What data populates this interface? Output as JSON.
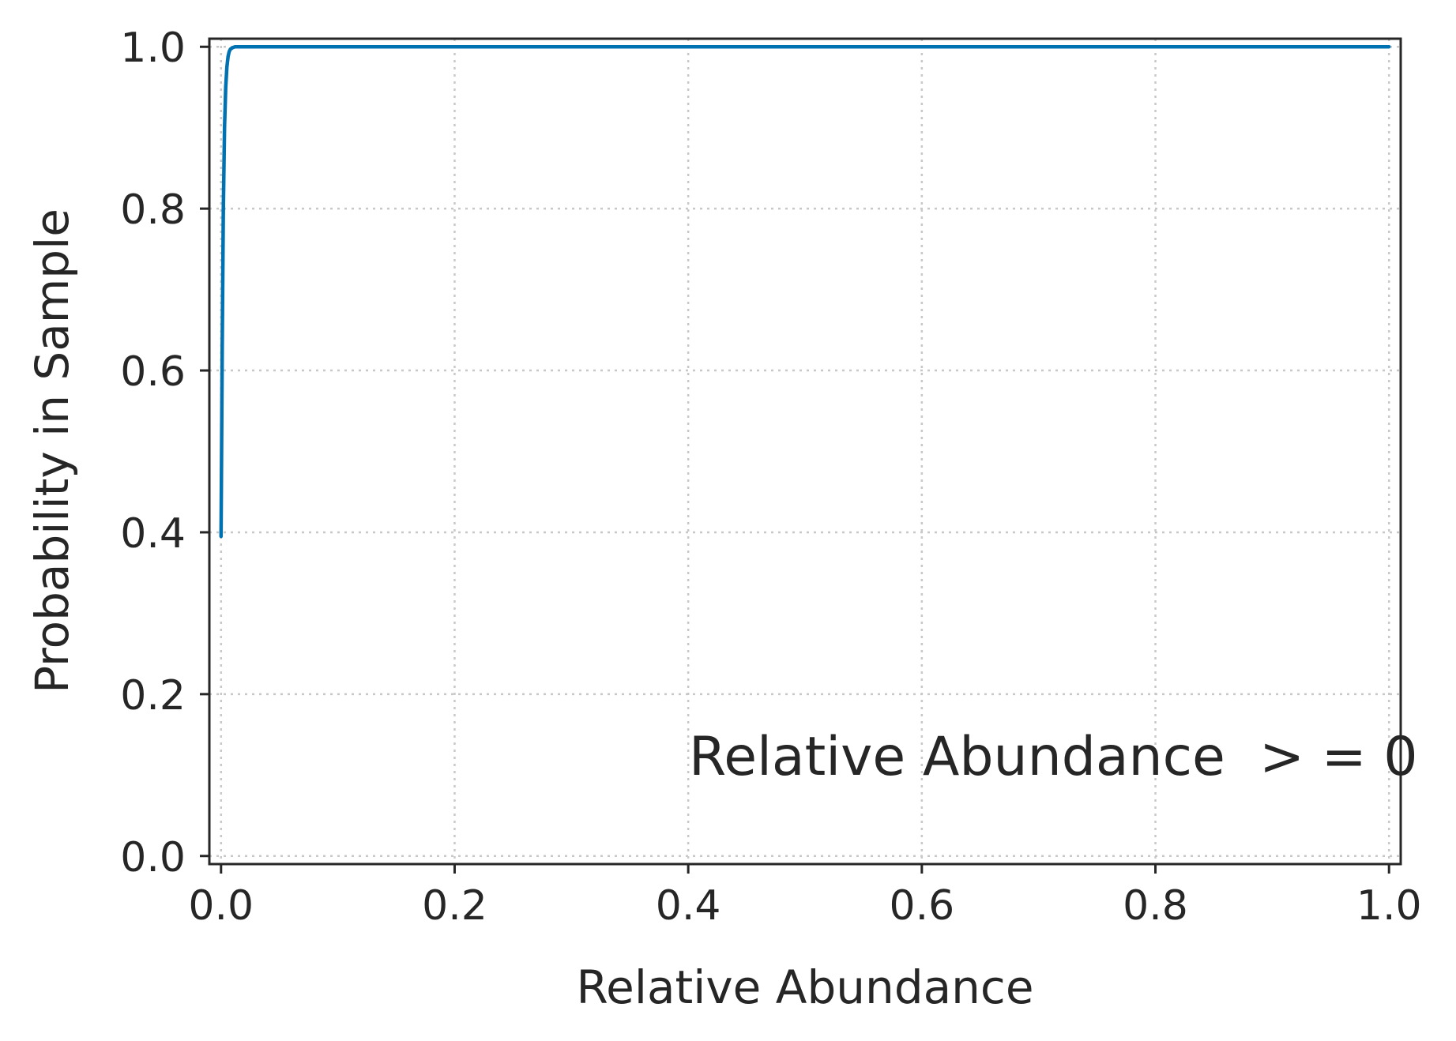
{
  "chart_data": {
    "type": "line",
    "xlabel": "Relative Abundance",
    "ylabel": "Probability in Sample",
    "xlim": [
      -0.01,
      1.01
    ],
    "ylim": [
      -0.01,
      1.01
    ],
    "xticks": [
      0.0,
      0.2,
      0.4,
      0.6,
      0.8,
      1.0
    ],
    "yticks": [
      0.0,
      0.2,
      0.4,
      0.6,
      0.8,
      1.0
    ],
    "xtick_labels": [
      "0.0",
      "0.2",
      "0.4",
      "0.6",
      "0.8",
      "1.0"
    ],
    "ytick_labels": [
      "0.0",
      "0.2",
      "0.4",
      "0.6",
      "0.8",
      "1.0"
    ],
    "grid": true,
    "annotation": "Relative Abundance  > = 0",
    "series": [
      {
        "color": "#0072b2",
        "x": [
          0.0,
          0.001,
          0.002,
          0.003,
          0.004,
          0.005,
          0.006,
          0.007,
          0.008,
          0.01,
          0.012,
          0.015,
          0.02,
          0.05,
          0.1,
          0.2,
          0.4,
          0.6,
          0.8,
          1.0
        ],
        "y": [
          0.395,
          0.63,
          0.8,
          0.9,
          0.95,
          0.975,
          0.988,
          0.994,
          0.997,
          0.999,
          1.0,
          1.0,
          1.0,
          1.0,
          1.0,
          1.0,
          1.0,
          1.0,
          1.0,
          1.0
        ]
      }
    ]
  }
}
